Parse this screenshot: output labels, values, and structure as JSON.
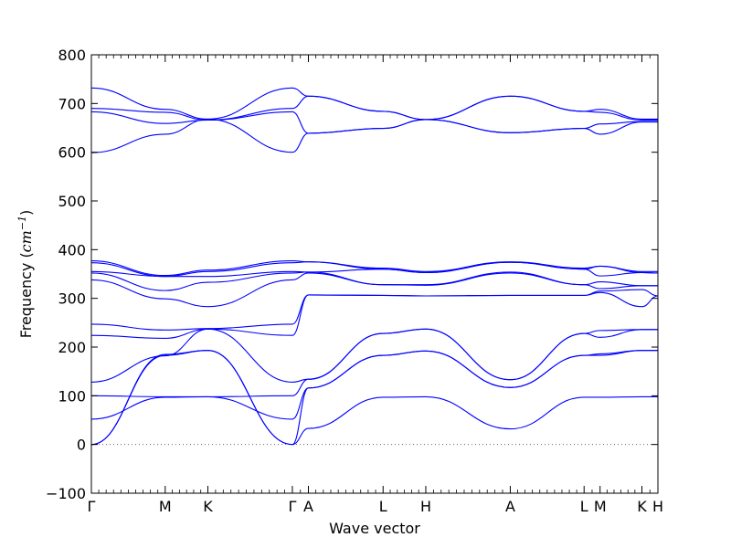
{
  "chart_data": {
    "type": "line",
    "xlabel": "Wave vector",
    "ylabel": "Frequency (cm⁻¹)",
    "ylabel_text": "Frequency (",
    "ylabel_unit": "cm",
    "ylabel_exp": "−1",
    "ylabel_close": ")",
    "ylim": [
      -100,
      800
    ],
    "yticks": [
      -100,
      0,
      100,
      200,
      300,
      400,
      500,
      600,
      700,
      800
    ],
    "xlim": [
      0,
      6.37
    ],
    "high_symmetry_points": [
      {
        "label": "Γ",
        "x": 0.0
      },
      {
        "label": "M",
        "x": 0.83
      },
      {
        "label": "K",
        "x": 1.31
      },
      {
        "label": "Γ",
        "x": 2.26
      },
      {
        "label": "A",
        "x": 2.44
      },
      {
        "label": "L",
        "x": 3.28
      },
      {
        "label": "H",
        "x": 3.76
      },
      {
        "label": "A",
        "x": 4.71
      },
      {
        "label": "L",
        "x": 5.54
      },
      {
        "label": "M",
        "x": 5.72
      },
      {
        "label": "K",
        "x": 6.19
      },
      {
        "label": "H",
        "x": 6.37
      }
    ],
    "series_color": "#0000ff",
    "zero_line": {
      "y": 0,
      "style": "dotted",
      "color": "#666666"
    },
    "series": [
      {
        "x": [
          0,
          0.83,
          1.31,
          2.26,
          2.44,
          3.28,
          3.76,
          4.71,
          5.54,
          5.72,
          6.19,
          6.37
        ],
        "y": [
          0,
          183,
          193,
          0,
          33,
          97,
          98,
          32,
          97,
          97,
          98,
          98
        ]
      },
      {
        "x": [
          0,
          0.83,
          1.31,
          2.26,
          2.44,
          3.28,
          3.76,
          4.71,
          5.54,
          5.72,
          6.19,
          6.37
        ],
        "y": [
          0,
          185,
          193,
          0,
          116,
          183,
          192,
          117,
          183,
          183,
          193,
          193
        ]
      },
      {
        "x": [
          0,
          0.83,
          1.31,
          2.26,
          2.44,
          3.28,
          3.76,
          4.71,
          5.54,
          5.72,
          6.19,
          6.37
        ],
        "y": [
          52,
          97,
          98,
          52,
          116,
          183,
          192,
          117,
          183,
          186,
          193,
          193
        ]
      },
      {
        "x": [
          0,
          0.83,
          1.31,
          2.26,
          2.44,
          3.28,
          3.76,
          4.71,
          5.54,
          5.72,
          6.19,
          6.37
        ],
        "y": [
          100,
          98,
          98,
          100,
          134,
          228,
          237,
          133,
          228,
          220,
          236,
          236
        ]
      },
      {
        "x": [
          0,
          0.83,
          1.31,
          2.26,
          2.44,
          3.28,
          3.76,
          4.71,
          5.54,
          5.72,
          6.19,
          6.37
        ],
        "y": [
          128,
          182,
          237,
          128,
          134,
          228,
          237,
          133,
          228,
          234,
          236,
          236
        ]
      },
      {
        "x": [
          0,
          0.83,
          1.31,
          2.26,
          2.44,
          3.28,
          3.76,
          4.71,
          5.54,
          5.72,
          6.19,
          6.37
        ],
        "y": [
          224,
          218,
          237,
          224,
          307,
          306,
          305,
          306,
          306,
          312,
          283,
          305
        ]
      },
      {
        "x": [
          0,
          0.83,
          1.31,
          2.26,
          2.44,
          3.28,
          3.76,
          4.71,
          5.54,
          5.72,
          6.19,
          6.37
        ],
        "y": [
          247,
          235,
          238,
          247,
          307,
          306,
          305,
          306,
          306,
          315,
          318,
          305
        ]
      },
      {
        "x": [
          0,
          0.83,
          1.31,
          2.26,
          2.44,
          3.28,
          3.76,
          4.71,
          5.54,
          5.72,
          6.19,
          6.37
        ],
        "y": [
          338,
          299,
          283,
          338,
          352,
          328,
          327,
          352,
          328,
          320,
          326,
          326
        ]
      },
      {
        "x": [
          0,
          0.83,
          1.31,
          2.26,
          2.44,
          3.28,
          3.76,
          4.71,
          5.54,
          5.72,
          6.19,
          6.37
        ],
        "y": [
          352,
          316,
          333,
          352,
          354,
          328,
          328,
          354,
          328,
          334,
          326,
          326
        ]
      },
      {
        "x": [
          0,
          0.83,
          1.31,
          2.26,
          2.44,
          3.28,
          3.76,
          4.71,
          5.54,
          5.72,
          6.19,
          6.37
        ],
        "y": [
          355,
          345,
          345,
          355,
          354,
          360,
          353,
          374,
          360,
          346,
          353,
          352
        ]
      },
      {
        "x": [
          0,
          0.83,
          1.31,
          2.26,
          2.44,
          3.28,
          3.76,
          4.71,
          5.54,
          5.72,
          6.19,
          6.37
        ],
        "y": [
          373,
          345,
          355,
          373,
          375,
          360,
          353,
          374,
          360,
          366,
          353,
          352
        ]
      },
      {
        "x": [
          0,
          0.83,
          1.31,
          2.26,
          2.44,
          3.28,
          3.76,
          4.71,
          5.54,
          5.72,
          6.19,
          6.37
        ],
        "y": [
          377,
          347,
          358,
          377,
          375,
          362,
          355,
          375,
          362,
          366,
          355,
          355
        ]
      },
      {
        "x": [
          0,
          0.83,
          1.31,
          2.26,
          2.44,
          3.28,
          3.76,
          4.71,
          5.54,
          5.72,
          6.19,
          6.37
        ],
        "y": [
          599,
          637,
          668,
          600,
          639,
          649,
          667,
          640,
          649,
          637,
          662,
          662
        ]
      },
      {
        "x": [
          0,
          0.83,
          1.31,
          2.26,
          2.44,
          3.28,
          3.76,
          4.71,
          5.54,
          5.72,
          6.19,
          6.37
        ],
        "y": [
          683,
          659,
          666,
          683,
          639,
          649,
          667,
          640,
          649,
          658,
          663,
          663
        ]
      },
      {
        "x": [
          0,
          0.83,
          1.31,
          2.26,
          2.44,
          3.28,
          3.76,
          4.71,
          5.54,
          5.72,
          6.19,
          6.37
        ],
        "y": [
          690,
          682,
          666,
          690,
          715,
          684,
          667,
          715,
          684,
          682,
          666,
          666
        ]
      },
      {
        "x": [
          0,
          0.83,
          1.31,
          2.26,
          2.44,
          3.28,
          3.76,
          4.71,
          5.54,
          5.72,
          6.19,
          6.37
        ],
        "y": [
          732,
          688,
          668,
          732,
          715,
          684,
          667,
          715,
          684,
          688,
          668,
          668
        ]
      }
    ]
  }
}
